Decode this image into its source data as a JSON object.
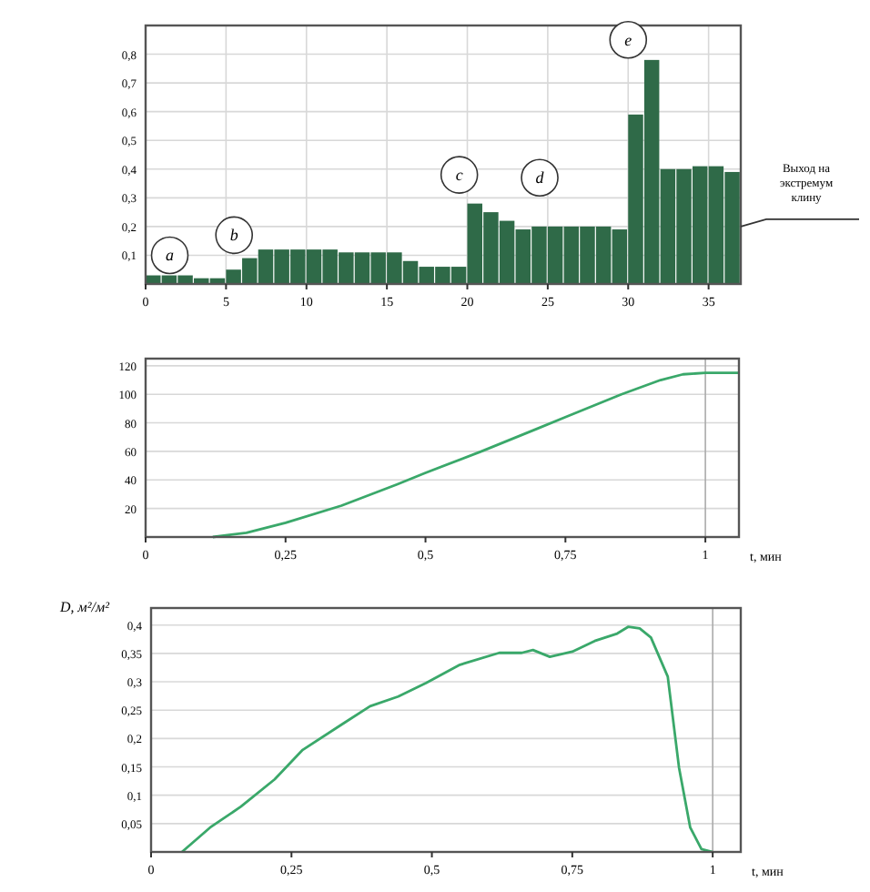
{
  "chart_data": [
    {
      "type": "histogram",
      "bins": [
        0,
        1,
        2,
        3,
        4,
        5,
        6,
        7,
        8,
        9,
        10,
        11,
        12,
        13,
        14,
        15,
        16,
        17,
        18,
        19,
        20,
        21,
        22,
        23,
        24,
        25,
        26,
        27,
        28,
        29,
        30,
        31,
        32,
        33,
        34,
        35,
        36,
        37
      ],
      "values": [
        0.03,
        0.03,
        0.03,
        0.02,
        0.02,
        0.05,
        0.09,
        0.12,
        0.12,
        0.12,
        0.12,
        0.12,
        0.11,
        0.11,
        0.11,
        0.11,
        0.08,
        0.06,
        0.06,
        0.06,
        0.28,
        0.25,
        0.22,
        0.19,
        0.2,
        0.2,
        0.2,
        0.2,
        0.2,
        0.19,
        0.59,
        0.78,
        0.4,
        0.4,
        0.41,
        0.41,
        0.39
      ],
      "color": "#2f6a48",
      "xlim": [
        0,
        37
      ],
      "xticks": [
        0,
        5,
        10,
        15,
        20,
        25,
        30,
        35
      ],
      "ylim": [
        0,
        0.9
      ],
      "yticks": [
        {
          "value": 0.1,
          "label": "0,1"
        },
        {
          "value": 0.2,
          "label": "0,2"
        },
        {
          "value": 0.3,
          "label": "0,3"
        },
        {
          "value": 0.4,
          "label": "0,4"
        },
        {
          "value": 0.5,
          "label": "0,5"
        },
        {
          "value": 0.6,
          "label": "0,6"
        },
        {
          "value": 0.7,
          "label": "0,7"
        },
        {
          "value": 0.8,
          "label": "0,8"
        }
      ],
      "grid": true,
      "annotations": [
        {
          "text": "a",
          "x": 1.5,
          "y": 0.1
        },
        {
          "text": "b",
          "x": 5.5,
          "y": 0.17
        },
        {
          "text": "c",
          "x": 19.5,
          "y": 0.38
        },
        {
          "text": "d",
          "x": 24.5,
          "y": 0.37
        },
        {
          "text": "e",
          "x": 30,
          "y": 0.85
        },
        {
          "text": "Выход на экстремум клину",
          "x": 37,
          "y": 0.2
        }
      ]
    },
    {
      "type": "line",
      "x": [
        0.12,
        0.18,
        0.25,
        0.35,
        0.45,
        0.5,
        0.6,
        0.7,
        0.75,
        0.85,
        0.92,
        0.96,
        1,
        1.06
      ],
      "values": [
        0,
        3,
        10,
        22,
        37,
        45,
        60,
        76,
        84,
        100,
        110,
        114,
        115,
        115
      ],
      "color": "#3aa86a",
      "xlim": [
        0,
        1.06
      ],
      "xticks": [
        0,
        {
          "value": 0.25,
          "label": "0,25"
        },
        {
          "value": 0.5,
          "label": "0,5"
        },
        {
          "value": 0.75,
          "label": "0,75"
        },
        1
      ],
      "ylim": [
        0,
        125
      ],
      "yticks": [
        20,
        40,
        60,
        80,
        100,
        120
      ],
      "grid": "y",
      "xlabel": "t, мин",
      "ref_lines": [
        {
          "axis": "x",
          "value": 1
        }
      ]
    },
    {
      "type": "line",
      "x": [
        0.055,
        0.105,
        0.16,
        0.22,
        0.27,
        0.34,
        0.39,
        0.44,
        0.49,
        0.55,
        0.62,
        0.66,
        0.68,
        0.71,
        0.75,
        0.79,
        0.83,
        0.85,
        0.87,
        0.89,
        0.92,
        0.94,
        0.96,
        0.98,
        1.0
      ],
      "values": [
        0,
        0.043,
        0.08,
        0.128,
        0.18,
        0.225,
        0.257,
        0.274,
        0.298,
        0.33,
        0.351,
        0.351,
        0.356,
        0.344,
        0.353,
        0.372,
        0.385,
        0.397,
        0.394,
        0.378,
        0.309,
        0.149,
        0.043,
        0.005,
        0
      ],
      "color": "#3aa86a",
      "xlim": [
        0,
        1.05
      ],
      "xticks": [
        0,
        {
          "value": 0.25,
          "label": "0,25"
        },
        {
          "value": 0.5,
          "label": "0,5"
        },
        {
          "value": 0.75,
          "label": "0,75"
        },
        1
      ],
      "ylim": [
        0,
        0.43
      ],
      "yticks": [
        {
          "value": 0.05,
          "label": "0,05"
        },
        {
          "value": 0.1,
          "label": "0,1"
        },
        {
          "value": 0.15,
          "label": "0,15"
        },
        {
          "value": 0.2,
          "label": "0,2"
        },
        {
          "value": 0.25,
          "label": "0,25"
        },
        {
          "value": 0.3,
          "label": "0,3"
        },
        {
          "value": 0.35,
          "label": "0,35"
        },
        {
          "value": 0.4,
          "label": "0,4"
        }
      ],
      "grid": "y",
      "xlabel": "t, мин",
      "ylabel": "D, м²/м²",
      "ref_lines": [
        {
          "axis": "x",
          "value": 1
        }
      ]
    }
  ]
}
